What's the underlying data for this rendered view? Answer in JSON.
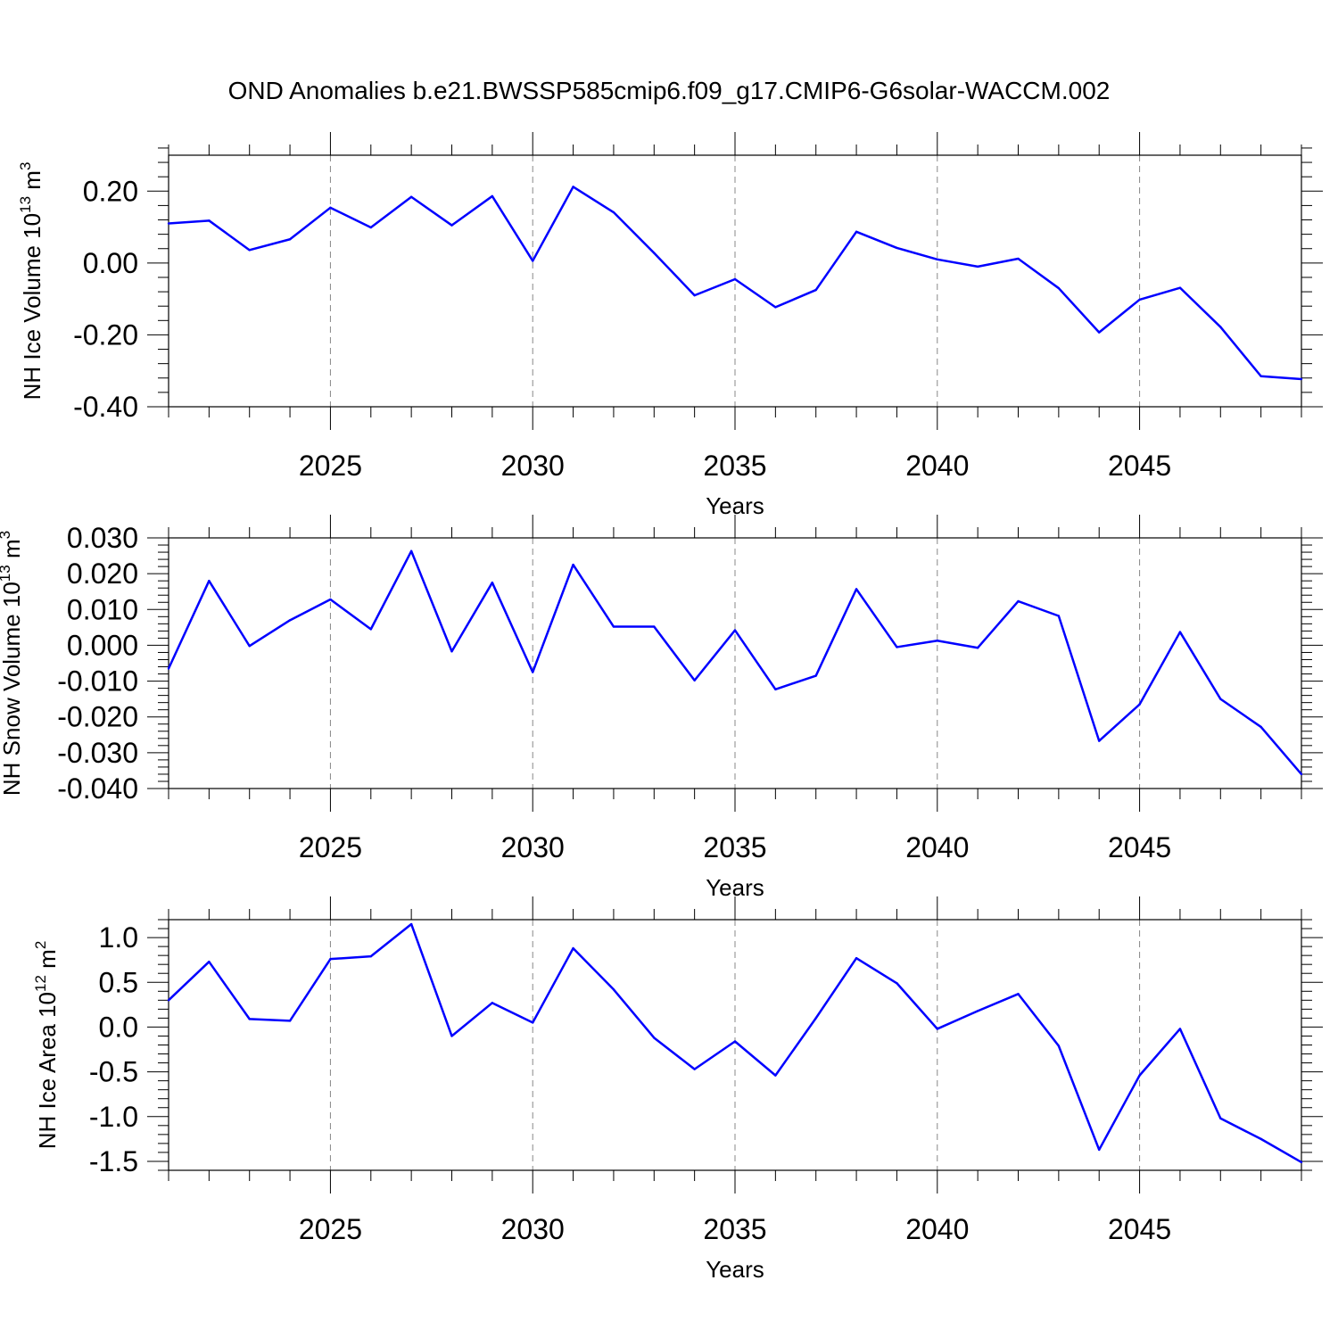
{
  "title": "OND Anomalies b.e21.BWSSP585cmip6.f09_g17.CMIP6-G6solar-WACCM.002",
  "colors": {
    "line": "#0000ff",
    "grid": "#888888"
  },
  "chart_data": [
    {
      "type": "line",
      "xlabel": "Years",
      "ylabel": {
        "text": "NH Ice Volume 10",
        "exponent": "13",
        "unit": " m",
        "unit_exponent": "3"
      },
      "xlim": [
        2021,
        2049
      ],
      "ylim": [
        -0.4,
        0.3
      ],
      "xticks": [
        2025,
        2030,
        2035,
        2040,
        2045
      ],
      "xtick_labels": [
        "2025",
        "2030",
        "2035",
        "2040",
        "2045"
      ],
      "yticks": [
        -0.4,
        -0.2,
        0.0,
        0.2
      ],
      "ytick_labels": [
        "-0.40",
        "-0.20",
        "0.00",
        "0.20"
      ],
      "grid": "vertical dashed at major x ticks",
      "x": [
        2021,
        2022,
        2023,
        2024,
        2025,
        2026,
        2027,
        2028,
        2029,
        2030,
        2031,
        2032,
        2033,
        2034,
        2035,
        2036,
        2037,
        2038,
        2039,
        2040,
        2041,
        2042,
        2043,
        2044,
        2045,
        2046,
        2047,
        2048,
        2049
      ],
      "series": [
        {
          "values": [
            0.11,
            0.118,
            0.036,
            0.066,
            0.154,
            0.099,
            0.184,
            0.105,
            0.186,
            0.006,
            0.212,
            0.141,
            0.028,
            -0.09,
            -0.045,
            -0.123,
            -0.075,
            0.087,
            0.042,
            0.01,
            -0.01,
            0.012,
            -0.07,
            -0.193,
            -0.102,
            -0.069,
            -0.178,
            -0.315,
            -0.323
          ]
        }
      ]
    },
    {
      "type": "line",
      "xlabel": "Years",
      "ylabel": {
        "text": "NH Snow Volume 10",
        "exponent": "13",
        "unit": " m",
        "unit_exponent": "3"
      },
      "xlim": [
        2021,
        2049
      ],
      "ylim": [
        -0.04,
        0.03
      ],
      "xticks": [
        2025,
        2030,
        2035,
        2040,
        2045
      ],
      "xtick_labels": [
        "2025",
        "2030",
        "2035",
        "2040",
        "2045"
      ],
      "yticks": [
        -0.04,
        -0.03,
        -0.02,
        -0.01,
        0.0,
        0.01,
        0.02,
        0.03
      ],
      "ytick_labels": [
        "-0.040",
        "-0.030",
        "-0.020",
        "-0.010",
        "0.000",
        "0.010",
        "0.020",
        "0.030"
      ],
      "grid": "vertical dashed at major x ticks",
      "x": [
        2021,
        2022,
        2023,
        2024,
        2025,
        2026,
        2027,
        2028,
        2029,
        2030,
        2031,
        2032,
        2033,
        2034,
        2035,
        2036,
        2037,
        2038,
        2039,
        2040,
        2041,
        2042,
        2043,
        2044,
        2045,
        2046,
        2047,
        2048,
        2049
      ],
      "series": [
        {
          "values": [
            -0.0065,
            0.018,
            -0.0002,
            0.007,
            0.0128,
            0.0045,
            0.0263,
            -0.0017,
            0.0175,
            -0.0075,
            0.0225,
            0.0052,
            0.0052,
            -0.0098,
            0.0042,
            -0.0123,
            -0.0085,
            0.0157,
            -0.0005,
            0.0013,
            -0.0007,
            0.0123,
            0.0082,
            -0.0267,
            -0.0165,
            0.0037,
            -0.015,
            -0.0228,
            -0.036
          ]
        }
      ]
    },
    {
      "type": "line",
      "xlabel": "Years",
      "ylabel": {
        "text": "NH Ice Area 10",
        "exponent": "12",
        "unit": " m",
        "unit_exponent": "2"
      },
      "xlim": [
        2021,
        2049
      ],
      "ylim": [
        -1.6,
        1.2
      ],
      "xticks": [
        2025,
        2030,
        2035,
        2040,
        2045
      ],
      "xtick_labels": [
        "2025",
        "2030",
        "2035",
        "2040",
        "2045"
      ],
      "yticks": [
        -1.5,
        -1.0,
        -0.5,
        0.0,
        0.5,
        1.0
      ],
      "ytick_labels": [
        "-1.5",
        "-1.0",
        "-0.5",
        "0.0",
        "0.5",
        "1.0"
      ],
      "grid": "vertical dashed at major x ticks",
      "x": [
        2021,
        2022,
        2023,
        2024,
        2025,
        2026,
        2027,
        2028,
        2029,
        2030,
        2031,
        2032,
        2033,
        2034,
        2035,
        2036,
        2037,
        2038,
        2039,
        2040,
        2041,
        2042,
        2043,
        2044,
        2045,
        2046,
        2047,
        2048,
        2049
      ],
      "series": [
        {
          "values": [
            0.3,
            0.73,
            0.09,
            0.07,
            0.76,
            0.79,
            1.15,
            -0.1,
            0.27,
            0.05,
            0.88,
            0.42,
            -0.12,
            -0.47,
            -0.16,
            -0.54,
            0.1,
            0.77,
            0.49,
            -0.02,
            0.18,
            0.37,
            -0.21,
            -1.37,
            -0.54,
            -0.02,
            -1.02,
            -1.25,
            -1.51
          ]
        }
      ]
    }
  ]
}
